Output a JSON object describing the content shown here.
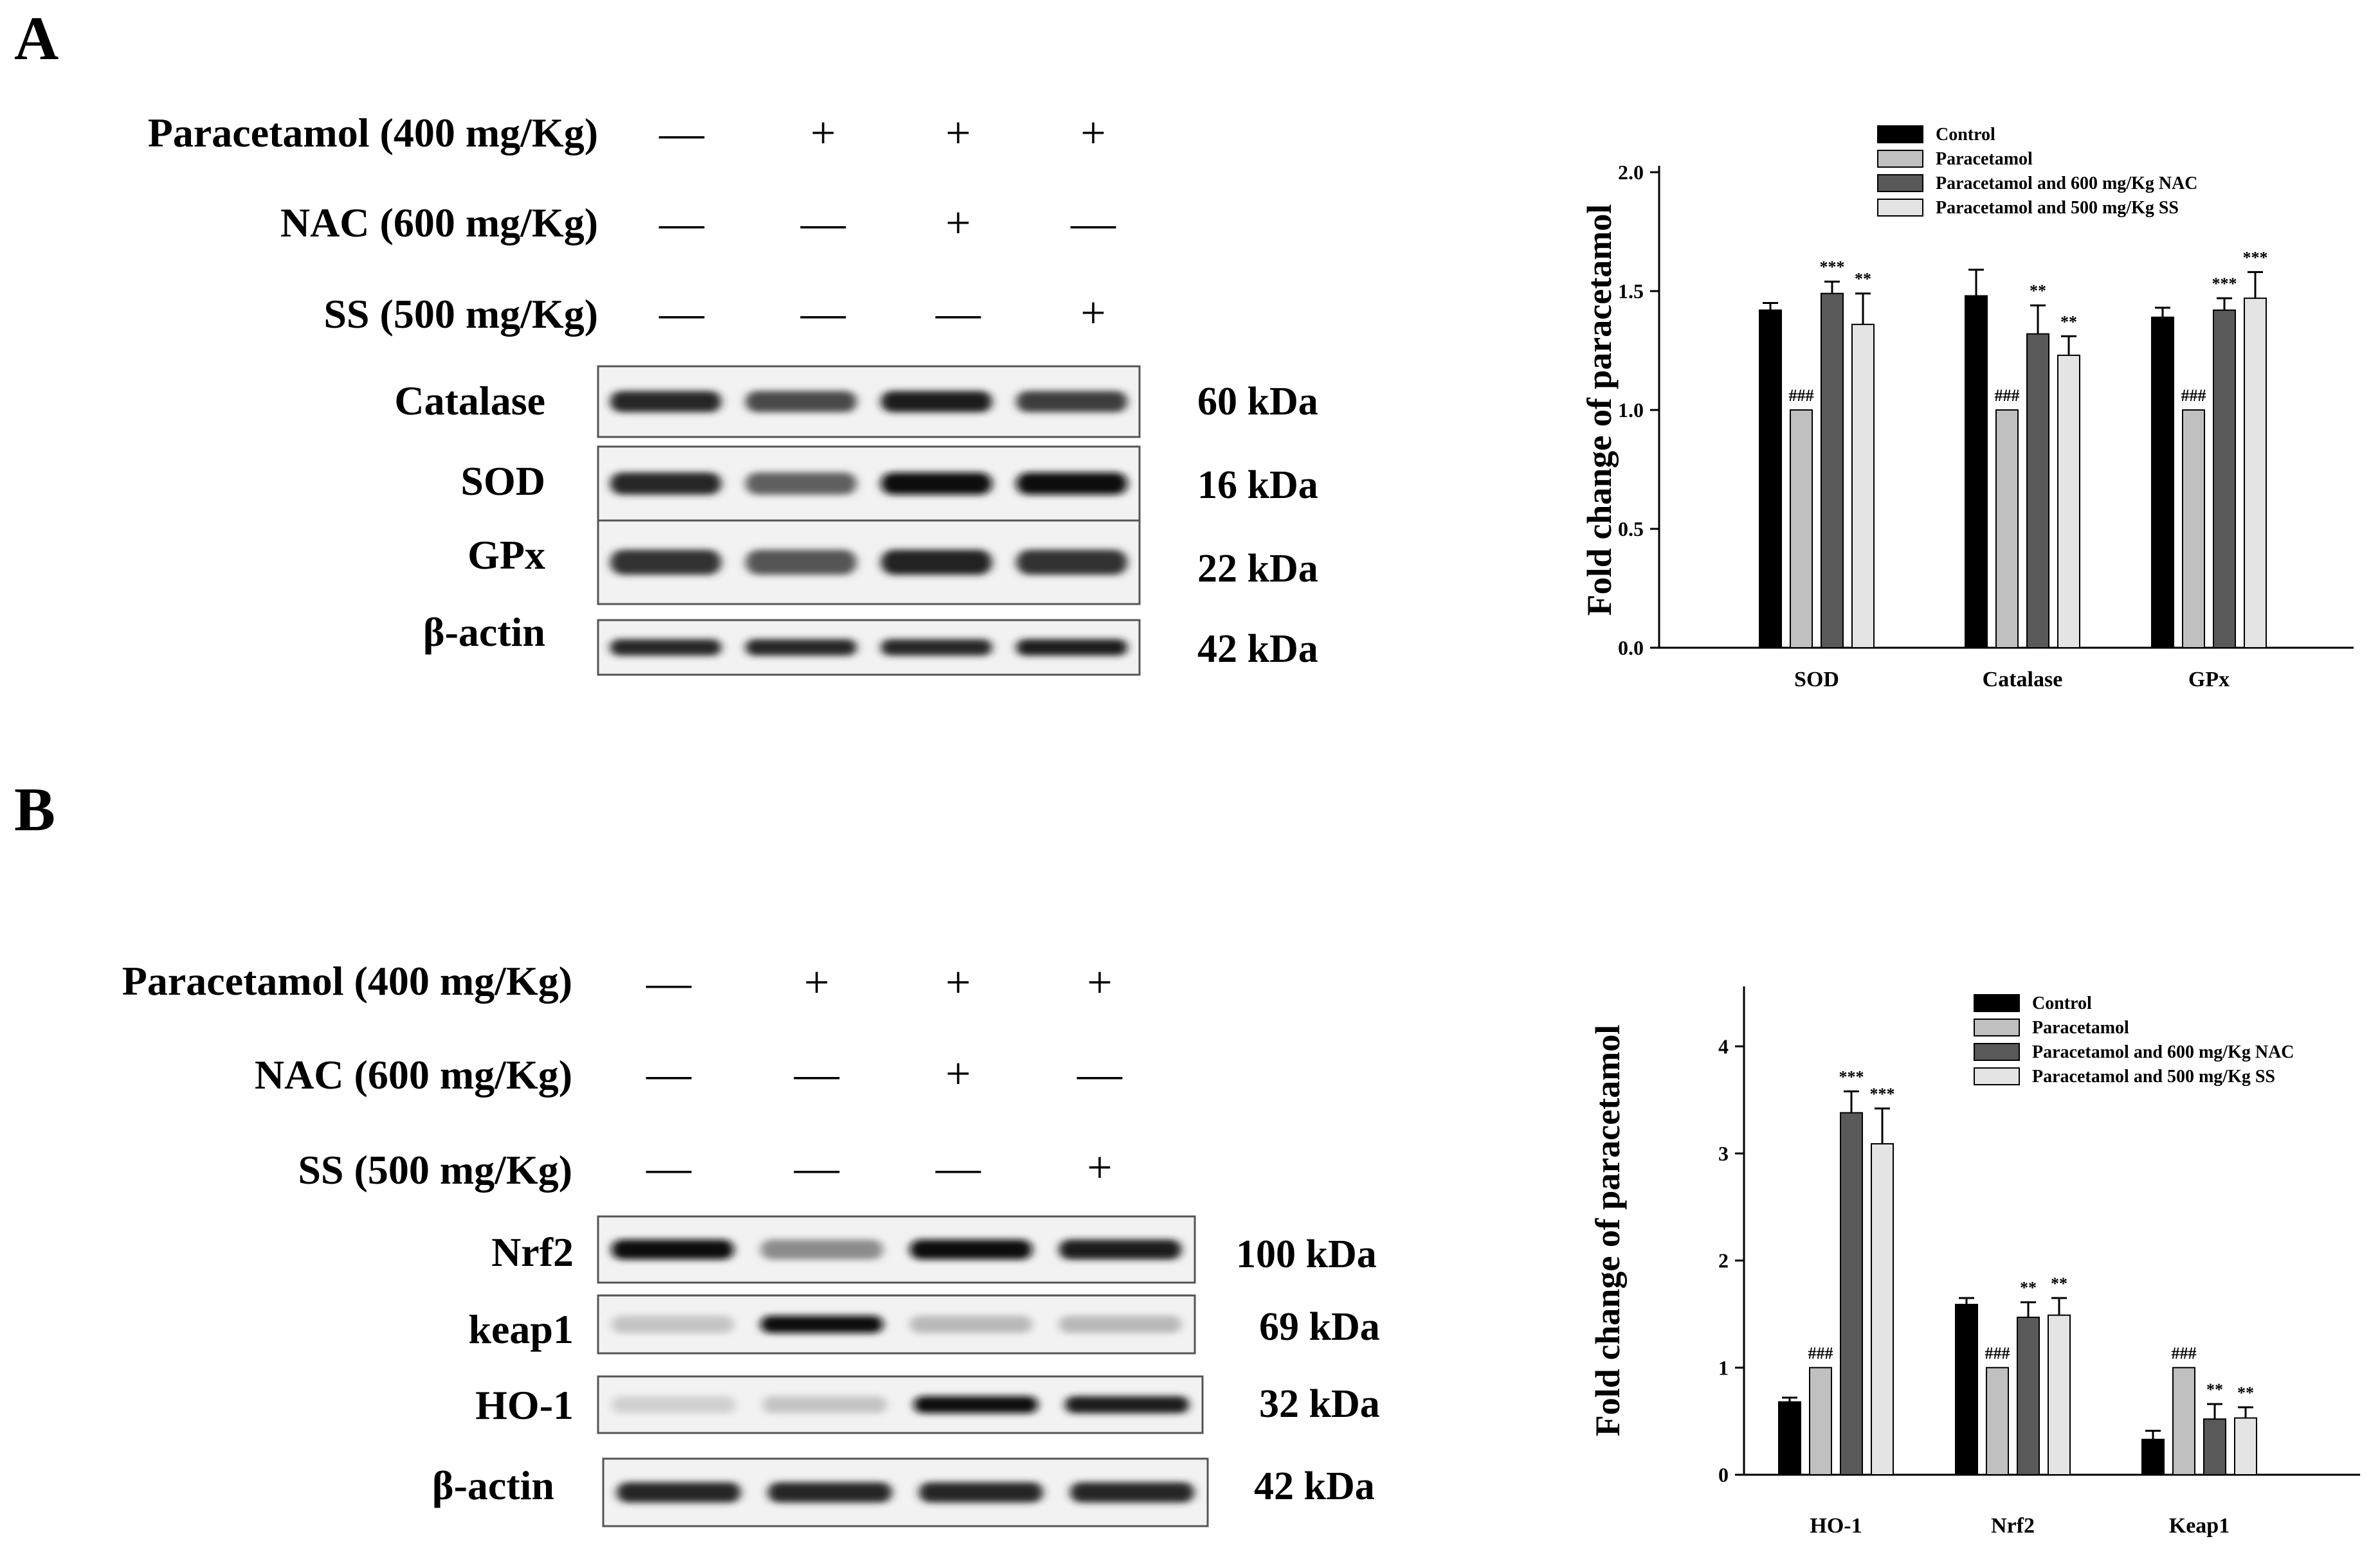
{
  "panels": [
    {
      "letter": "A",
      "treatments": [
        {
          "label": "Paracetamol (400 mg/Kg)",
          "signs": [
            "—",
            "+",
            "+",
            "+"
          ]
        },
        {
          "label": "NAC (600 mg/Kg)",
          "signs": [
            "—",
            "—",
            "+",
            "—"
          ]
        },
        {
          "label": "SS (500 mg/Kg)",
          "signs": [
            "—",
            "—",
            "—",
            "+"
          ]
        }
      ],
      "blots": [
        {
          "protein": "Catalase",
          "kda": "60 kDa",
          "intensity": [
            0.85,
            0.7,
            0.9,
            0.75
          ]
        },
        {
          "protein": "SOD",
          "kda": "16 kDa",
          "intensity": [
            0.85,
            0.6,
            0.95,
            0.95
          ]
        },
        {
          "protein": "GPx",
          "kda": "22 kDa",
          "intensity": [
            0.8,
            0.65,
            0.88,
            0.8
          ]
        },
        {
          "protein": "β-actin",
          "kda": "42 kDa",
          "intensity": [
            0.85,
            0.85,
            0.85,
            0.9
          ]
        }
      ]
    },
    {
      "letter": "B",
      "treatments": [
        {
          "label": "Paracetamol (400 mg/Kg)",
          "signs": [
            "—",
            "+",
            "+",
            "+"
          ]
        },
        {
          "label": "NAC (600 mg/Kg)",
          "signs": [
            "—",
            "—",
            "+",
            "—"
          ]
        },
        {
          "label": "SS (500 mg/Kg)",
          "signs": [
            "—",
            "—",
            "—",
            "+"
          ]
        }
      ],
      "blots": [
        {
          "protein": "Nrf2",
          "kda": "100 kDa",
          "intensity": [
            0.95,
            0.4,
            0.95,
            0.9
          ]
        },
        {
          "protein": "keap1",
          "kda": "69 kDa",
          "intensity": [
            0.15,
            0.95,
            0.2,
            0.2
          ]
        },
        {
          "protein": "HO-1",
          "kda": "32 kDa",
          "intensity": [
            0.1,
            0.15,
            0.95,
            0.9
          ]
        },
        {
          "protein": "β-actin",
          "kda": "42 kDa",
          "intensity": [
            0.85,
            0.85,
            0.85,
            0.85
          ]
        }
      ]
    }
  ],
  "chart_data": [
    {
      "type": "bar",
      "ylabel": "Fold change of paracetamol",
      "ylim": [
        0,
        2.0
      ],
      "yticks": [
        "0.0",
        "0.5",
        "1.0",
        "1.5",
        "2.0"
      ],
      "categories": [
        "SOD",
        "Catalase",
        "GPx"
      ],
      "legend_position": "top-right",
      "series": [
        {
          "name": "Control",
          "values": [
            1.42,
            1.48,
            1.39
          ],
          "errors": [
            0.03,
            0.11,
            0.04
          ]
        },
        {
          "name": "Paracetamol",
          "values": [
            1.0,
            1.0,
            1.0
          ],
          "errors": [
            0,
            0,
            0
          ]
        },
        {
          "name": "Paracetamol and 600 mg/Kg NAC",
          "values": [
            1.49,
            1.32,
            1.42
          ],
          "errors": [
            0.05,
            0.12,
            0.05
          ]
        },
        {
          "name": "Paracetamol and 500 mg/Kg SS",
          "values": [
            1.36,
            1.23,
            1.47
          ],
          "errors": [
            0.13,
            0.08,
            0.11
          ]
        }
      ],
      "annotations": [
        {
          "category": 0,
          "series": 1,
          "text": "###"
        },
        {
          "category": 0,
          "series": 2,
          "text": "***"
        },
        {
          "category": 0,
          "series": 3,
          "text": "**"
        },
        {
          "category": 1,
          "series": 1,
          "text": "###"
        },
        {
          "category": 1,
          "series": 2,
          "text": "**"
        },
        {
          "category": 1,
          "series": 3,
          "text": "**"
        },
        {
          "category": 2,
          "series": 1,
          "text": "###"
        },
        {
          "category": 2,
          "series": 2,
          "text": "***"
        },
        {
          "category": 2,
          "series": 3,
          "text": "***"
        }
      ],
      "colors": [
        "#000000",
        "#c0c0c0",
        "#595959",
        "#e4e4e4"
      ]
    },
    {
      "type": "bar",
      "ylabel": "Fold change of paracetamol",
      "ylim": [
        0,
        4.5
      ],
      "yticks": [
        "0",
        "1",
        "2",
        "3",
        "4"
      ],
      "categories": [
        "HO-1",
        "Nrf2",
        "Keap1"
      ],
      "legend_position": "top-right",
      "series": [
        {
          "name": "Control",
          "values": [
            0.68,
            1.59,
            0.33
          ],
          "errors": [
            0.04,
            0.06,
            0.08
          ]
        },
        {
          "name": "Paracetamol",
          "values": [
            1.0,
            1.0,
            1.0
          ],
          "errors": [
            0,
            0,
            0
          ]
        },
        {
          "name": "Paracetamol and 600 mg/Kg NAC",
          "values": [
            3.38,
            1.47,
            0.52
          ],
          "errors": [
            0.2,
            0.14,
            0.14
          ]
        },
        {
          "name": "Paracetamol and 500 mg/Kg SS",
          "values": [
            3.09,
            1.49,
            0.53
          ],
          "errors": [
            0.33,
            0.16,
            0.1
          ]
        }
      ],
      "annotations": [
        {
          "category": 0,
          "series": 1,
          "text": "###"
        },
        {
          "category": 0,
          "series": 2,
          "text": "***"
        },
        {
          "category": 0,
          "series": 3,
          "text": "***"
        },
        {
          "category": 1,
          "series": 1,
          "text": "###"
        },
        {
          "category": 1,
          "series": 2,
          "text": "**"
        },
        {
          "category": 1,
          "series": 3,
          "text": "**"
        },
        {
          "category": 2,
          "series": 1,
          "text": "###"
        },
        {
          "category": 2,
          "series": 2,
          "text": "**"
        },
        {
          "category": 2,
          "series": 3,
          "text": "**"
        }
      ],
      "colors": [
        "#000000",
        "#c0c0c0",
        "#595959",
        "#e4e4e4"
      ]
    }
  ]
}
